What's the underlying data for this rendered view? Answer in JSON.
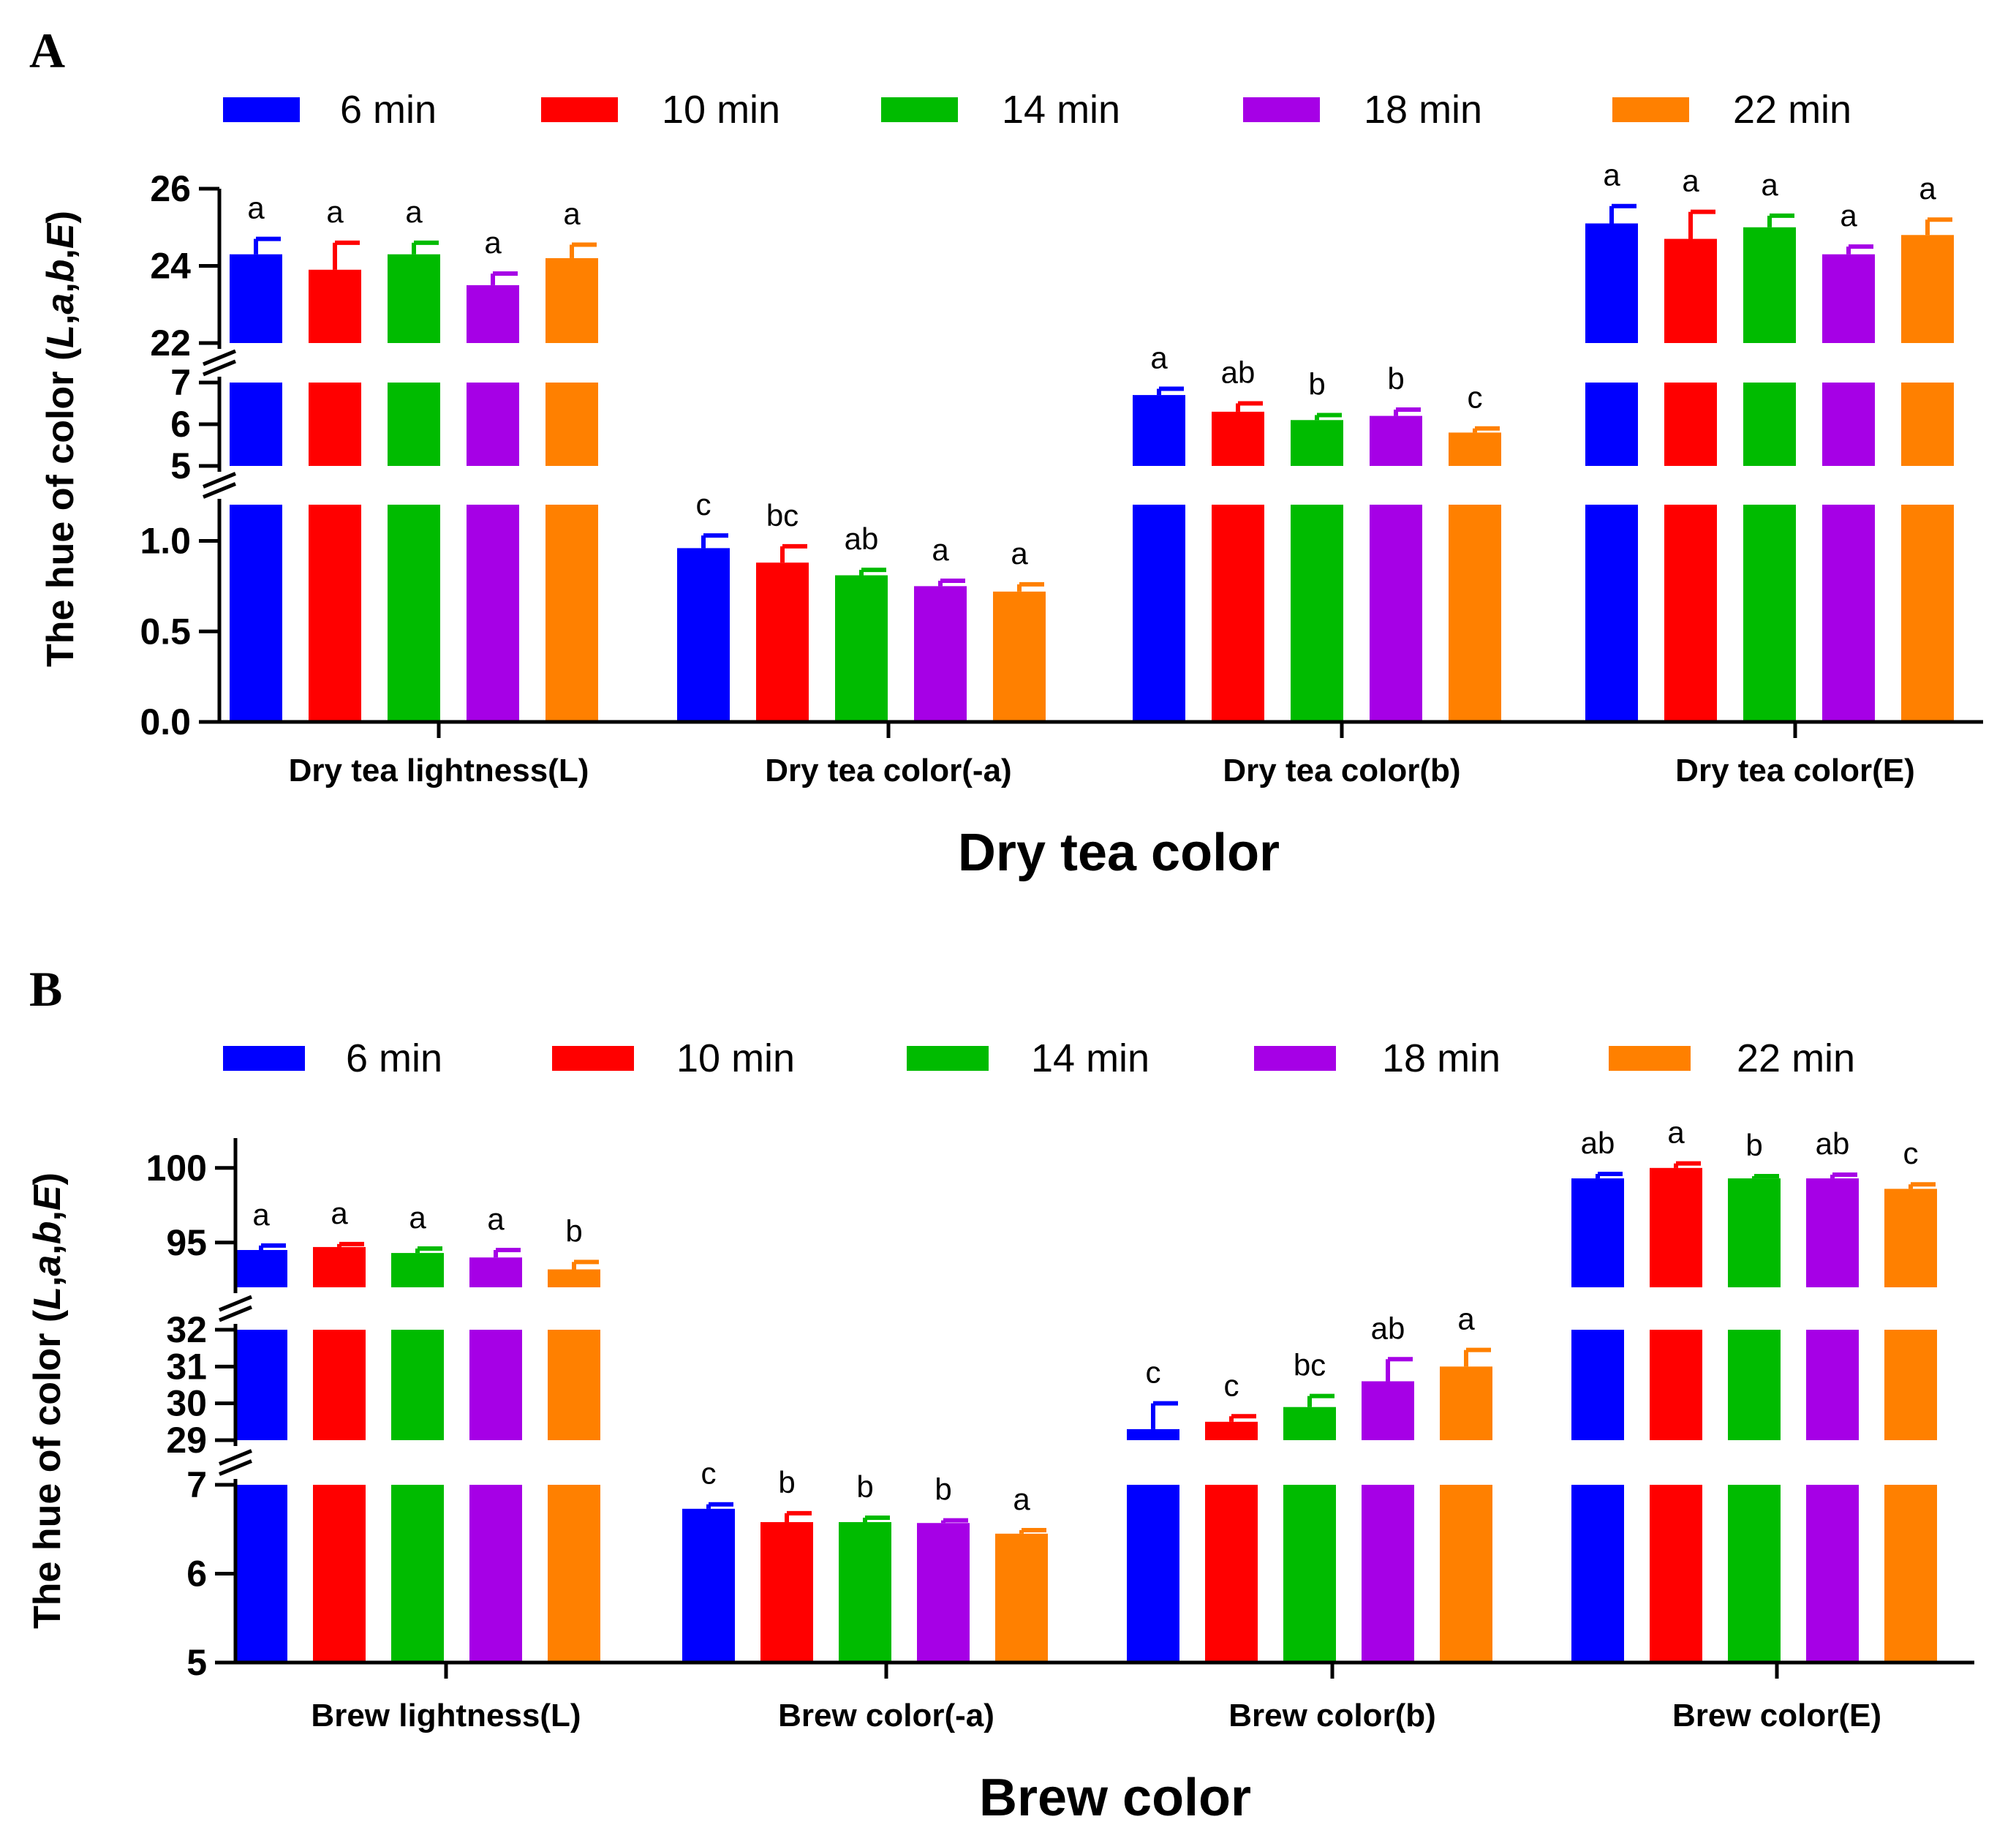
{
  "colors": {
    "6 min": "#0000ff",
    "10 min": "#ff0000",
    "14 min": "#00bb00",
    "18 min": "#a600e6",
    "22 min": "#ff8000"
  },
  "chart_data": [
    {
      "panel": "A",
      "type": "bar",
      "legend": [
        "6 min",
        "10 min",
        "14 min",
        "18 min",
        "22 min"
      ],
      "categories": [
        "Dry tea lightness(L)",
        "Dry tea color(-a)",
        "Dry tea color(b)",
        "Dry tea color(E)"
      ],
      "xlabel": "Dry tea color",
      "ylabel": "The hue of color (L,a,b,E)",
      "ylabel_parts": [
        "The hue of color (",
        "L",
        ",",
        "a",
        ",",
        "b",
        ",",
        "E",
        ")"
      ],
      "axis_segments": [
        {
          "range": [
            0,
            1.2
          ],
          "ticks": [
            0.0,
            0.5,
            1.0
          ],
          "tick_labels": [
            "0.0",
            "0.5",
            "1.0"
          ]
        },
        {
          "range": [
            5,
            7
          ],
          "ticks": [
            5,
            6,
            7
          ],
          "tick_labels": [
            "5",
            "6",
            "7"
          ]
        },
        {
          "range": [
            22,
            26
          ],
          "ticks": [
            22,
            24,
            26
          ],
          "tick_labels": [
            "22",
            "24",
            "26"
          ]
        }
      ],
      "series": [
        {
          "name": "6 min",
          "values": [
            24.3,
            0.96,
            6.7,
            25.1
          ],
          "errors": [
            0.4,
            0.07,
            0.15,
            0.45
          ],
          "letters": [
            "a",
            "c",
            "a",
            "a"
          ]
        },
        {
          "name": "10 min",
          "values": [
            23.9,
            0.88,
            6.3,
            24.7
          ],
          "errors": [
            0.7,
            0.09,
            0.2,
            0.7
          ],
          "letters": [
            "a",
            "bc",
            "ab",
            "a"
          ]
        },
        {
          "name": "14 min",
          "values": [
            24.3,
            0.81,
            6.1,
            25.0
          ],
          "errors": [
            0.3,
            0.03,
            0.12,
            0.3
          ],
          "letters": [
            "a",
            "ab",
            "b",
            "a"
          ]
        },
        {
          "name": "18 min",
          "values": [
            23.5,
            0.75,
            6.2,
            24.3
          ],
          "errors": [
            0.3,
            0.03,
            0.15,
            0.2
          ],
          "letters": [
            "a",
            "a",
            "b",
            "a"
          ]
        },
        {
          "name": "22 min",
          "values": [
            24.2,
            0.72,
            5.8,
            24.8
          ],
          "errors": [
            0.35,
            0.04,
            0.1,
            0.4
          ],
          "letters": [
            "a",
            "a",
            "c",
            "a"
          ]
        }
      ]
    },
    {
      "panel": "B",
      "type": "bar",
      "legend": [
        "6 min",
        "10 min",
        "14 min",
        "18 min",
        "22 min"
      ],
      "categories": [
        "Brew lightness(L)",
        "Brew color(-a)",
        "Brew color(b)",
        "Brew color(E)"
      ],
      "xlabel": "Brew color",
      "ylabel": "The hue of color (L,a,b,E)",
      "ylabel_parts": [
        "The hue of color (",
        "L",
        ",",
        "a",
        ",",
        "b",
        ",",
        "E",
        ")"
      ],
      "axis_segments": [
        {
          "range": [
            5,
            7
          ],
          "ticks": [
            5,
            6,
            7
          ],
          "tick_labels": [
            "5",
            "6",
            "7"
          ]
        },
        {
          "range": [
            29,
            32
          ],
          "ticks": [
            29,
            30,
            31,
            32
          ],
          "tick_labels": [
            "29",
            "30",
            "31",
            "32"
          ]
        },
        {
          "range": [
            92,
            102
          ],
          "ticks": [
            95,
            100
          ],
          "tick_labels": [
            "95",
            "100"
          ]
        }
      ],
      "series": [
        {
          "name": "6 min",
          "values": [
            94.5,
            6.73,
            29.3,
            99.3
          ],
          "errors": [
            0.3,
            0.05,
            0.7,
            0.3
          ],
          "letters": [
            "a",
            "c",
            "c",
            "ab"
          ]
        },
        {
          "name": "10 min",
          "values": [
            94.7,
            6.58,
            29.5,
            100.0
          ],
          "errors": [
            0.2,
            0.1,
            0.15,
            0.3
          ],
          "letters": [
            "a",
            "b",
            "c",
            "a"
          ]
        },
        {
          "name": "14 min",
          "values": [
            94.3,
            6.58,
            29.9,
            99.3
          ],
          "errors": [
            0.3,
            0.05,
            0.3,
            0.15
          ],
          "letters": [
            "a",
            "b",
            "bc",
            "b"
          ]
        },
        {
          "name": "18 min",
          "values": [
            94.0,
            6.57,
            30.6,
            99.3
          ],
          "errors": [
            0.5,
            0.03,
            0.6,
            0.25
          ],
          "letters": [
            "a",
            "b",
            "ab",
            "ab"
          ]
        },
        {
          "name": "22 min",
          "values": [
            93.2,
            6.45,
            31.0,
            98.6
          ],
          "errors": [
            0.5,
            0.04,
            0.45,
            0.3
          ],
          "letters": [
            "b",
            "a",
            "a",
            "c"
          ]
        }
      ]
    }
  ]
}
